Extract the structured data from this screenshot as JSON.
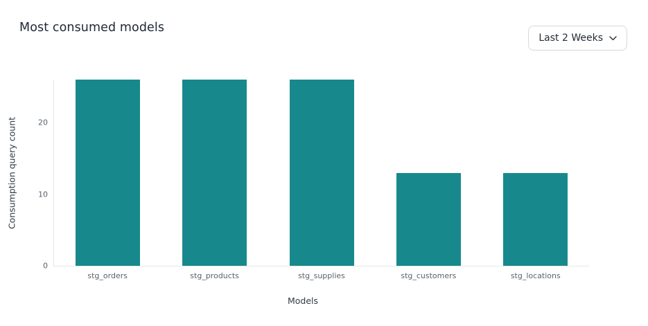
{
  "header": {
    "title": "Most consumed models"
  },
  "filter": {
    "selected_label": "Last 2 Weeks"
  },
  "chart_data": {
    "type": "bar",
    "categories": [
      "stg_orders",
      "stg_products",
      "stg_supplies",
      "stg_customers",
      "stg_locations"
    ],
    "values": [
      26,
      26,
      26,
      13,
      13
    ],
    "title": "Most consumed models",
    "xlabel": "Models",
    "ylabel": "Consumption query count",
    "ylim": [
      0,
      26
    ],
    "yticks": [
      0,
      10,
      20
    ],
    "grid": false,
    "legend_position": "none",
    "bar_color": "#17898C",
    "axis_line_color": "#e4e7ea",
    "tick_label_color": "#5a636d"
  }
}
